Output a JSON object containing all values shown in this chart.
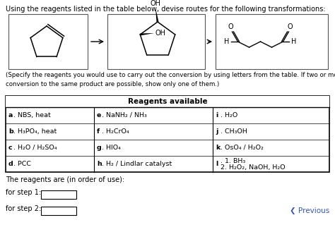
{
  "title": "Using the reagents listed in the table below, devise routes for the following transformations:",
  "specify_text": "(Specify the reagents you would use to carry out the conversion by using letters from the table. If two or more ways of\nconversion to the same product are possible, show only one of them.)",
  "table_header": "Reagents available",
  "table_col1": [
    [
      "a",
      ". NBS, heat"
    ],
    [
      "b",
      ". H₃PO₄, heat"
    ],
    [
      "c",
      ". H₂O / H₂SO₄"
    ],
    [
      "d",
      ". PCC"
    ]
  ],
  "table_col2": [
    [
      "e",
      ". NaNH₂ / NH₃"
    ],
    [
      "f",
      ". H₂CrO₄"
    ],
    [
      "g",
      ". HIO₄"
    ],
    [
      "h",
      ". H₂ / Lindlar catalyst"
    ]
  ],
  "table_col3": [
    [
      "i",
      ". H₂O"
    ],
    [
      "j",
      ". CH₃OH"
    ],
    [
      "k",
      ". OsO₄ / H₂O₂"
    ],
    [
      "l",
      ". 1. BH₃\n2. H₂O₂, NaOH, H₂O"
    ]
  ],
  "reagents_text": "The reagents are (in order of use):",
  "step1_label": "for step 1:",
  "step2_label": "for step 2:",
  "previous_text": "❮ Previous",
  "bg_color": "#ffffff",
  "text_color": "#000000"
}
